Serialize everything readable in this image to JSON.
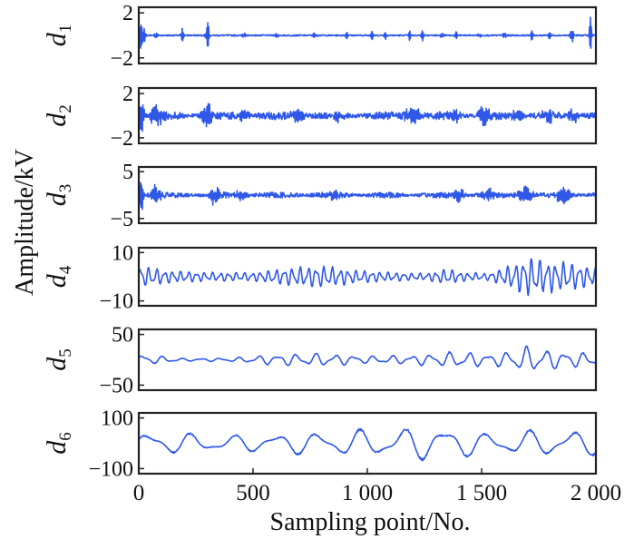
{
  "chart_data": {
    "type": "line",
    "ylabel": "Amplitude/kV",
    "xlabel": "Sampling point/No.",
    "xlim": [
      0,
      2000
    ],
    "x_ticks": [
      {
        "value": 0,
        "label": "0"
      },
      {
        "value": 500,
        "label": "500"
      },
      {
        "value": 1000,
        "label": "1 000"
      },
      {
        "value": 1500,
        "label": "1 500"
      },
      {
        "value": 2000,
        "label": "2 000"
      }
    ],
    "panels": [
      {
        "label": "d",
        "index": "1",
        "ylim": [
          -2.5,
          2.5
        ],
        "y_ticks": [
          {
            "value": 2,
            "label": "2"
          },
          {
            "value": -2,
            "label": "−2"
          }
        ],
        "color": "#2f58e8",
        "style": "impulses",
        "bursts": [
          [
            15,
            1.8,
            10
          ],
          [
            75,
            0.6,
            6
          ],
          [
            190,
            0.7,
            6
          ],
          [
            300,
            1.8,
            8
          ],
          [
            460,
            0.5,
            6
          ],
          [
            605,
            0.4,
            6
          ],
          [
            770,
            0.4,
            6
          ],
          [
            910,
            0.4,
            6
          ],
          [
            1020,
            0.5,
            6
          ],
          [
            1080,
            0.4,
            6
          ],
          [
            1185,
            0.5,
            6
          ],
          [
            1240,
            0.6,
            6
          ],
          [
            1325,
            0.5,
            6
          ],
          [
            1390,
            0.4,
            6
          ],
          [
            1490,
            0.4,
            6
          ],
          [
            1600,
            0.5,
            6
          ],
          [
            1720,
            0.5,
            6
          ],
          [
            1800,
            0.6,
            6
          ],
          [
            1895,
            1.3,
            6
          ],
          [
            1975,
            1.8,
            6
          ]
        ]
      },
      {
        "label": "d",
        "index": "2",
        "ylim": [
          -2.5,
          2.5
        ],
        "y_ticks": [
          {
            "value": 2,
            "label": "2"
          },
          {
            "value": -2,
            "label": "−2"
          }
        ],
        "color": "#2f58e8",
        "style": "bursty",
        "base": 0.35,
        "bursts": [
          [
            12,
            2.0,
            12
          ],
          [
            80,
            0.9,
            30
          ],
          [
            300,
            1.2,
            25
          ],
          [
            460,
            0.6,
            25
          ],
          [
            700,
            0.7,
            30
          ],
          [
            870,
            0.5,
            25
          ],
          [
            1200,
            0.9,
            35
          ],
          [
            1380,
            0.7,
            25
          ],
          [
            1510,
            0.9,
            25
          ],
          [
            1660,
            0.6,
            30
          ],
          [
            1790,
            0.8,
            25
          ],
          [
            1900,
            0.6,
            25
          ]
        ]
      },
      {
        "label": "d",
        "index": "3",
        "ylim": [
          -6,
          6
        ],
        "y_ticks": [
          {
            "value": 5,
            "label": "5"
          },
          {
            "value": -5,
            "label": "−5"
          }
        ],
        "color": "#2f58e8",
        "style": "bursty",
        "base": 0.6,
        "bursts": [
          [
            10,
            4.8,
            10
          ],
          [
            75,
            2.0,
            20
          ],
          [
            330,
            1.8,
            25
          ],
          [
            450,
            1.5,
            25
          ],
          [
            860,
            1.0,
            30
          ],
          [
            1400,
            1.4,
            30
          ],
          [
            1530,
            1.2,
            25
          ],
          [
            1690,
            2.0,
            30
          ],
          [
            1860,
            2.2,
            30
          ]
        ]
      },
      {
        "label": "d",
        "index": "4",
        "ylim": [
          -12,
          12
        ],
        "y_ticks": [
          {
            "value": 10,
            "label": "10"
          },
          {
            "value": -10,
            "label": "−10"
          }
        ],
        "color": "#2f58e8",
        "style": "wave",
        "freq": 0.18,
        "envelope": [
          [
            0,
            5
          ],
          [
            120,
            3
          ],
          [
            300,
            2
          ],
          [
            500,
            2
          ],
          [
            650,
            4
          ],
          [
            800,
            5
          ],
          [
            950,
            3
          ],
          [
            1100,
            2
          ],
          [
            1250,
            1.5
          ],
          [
            1350,
            3.5
          ],
          [
            1420,
            2
          ],
          [
            1520,
            1.5
          ],
          [
            1600,
            4
          ],
          [
            1700,
            9
          ],
          [
            1800,
            7
          ],
          [
            1900,
            6
          ],
          [
            2000,
            4
          ]
        ]
      },
      {
        "label": "d",
        "index": "5",
        "ylim": [
          -60,
          60
        ],
        "y_ticks": [
          {
            "value": 50,
            "label": "50"
          },
          {
            "value": -50,
            "label": "−50"
          }
        ],
        "color": "#2f58e8",
        "style": "wave",
        "freq": 0.075,
        "envelope": [
          [
            0,
            12
          ],
          [
            100,
            8
          ],
          [
            200,
            3
          ],
          [
            400,
            4
          ],
          [
            600,
            12
          ],
          [
            800,
            14
          ],
          [
            1000,
            8
          ],
          [
            1200,
            10
          ],
          [
            1400,
            18
          ],
          [
            1550,
            12
          ],
          [
            1700,
            28
          ],
          [
            1850,
            18
          ],
          [
            2000,
            14
          ]
        ]
      },
      {
        "label": "d",
        "index": "6",
        "ylim": [
          -120,
          120
        ],
        "y_ticks": [
          {
            "value": 100,
            "label": "100"
          },
          {
            "value": -100,
            "label": "−100"
          }
        ],
        "color": "#2f58e8",
        "style": "slow",
        "freq": 0.034,
        "envelope": [
          [
            0,
            50
          ],
          [
            200,
            45
          ],
          [
            400,
            35
          ],
          [
            600,
            45
          ],
          [
            800,
            50
          ],
          [
            1000,
            60
          ],
          [
            1200,
            70
          ],
          [
            1350,
            80
          ],
          [
            1500,
            45
          ],
          [
            1700,
            55
          ],
          [
            1900,
            60
          ],
          [
            2000,
            50
          ]
        ]
      }
    ]
  }
}
